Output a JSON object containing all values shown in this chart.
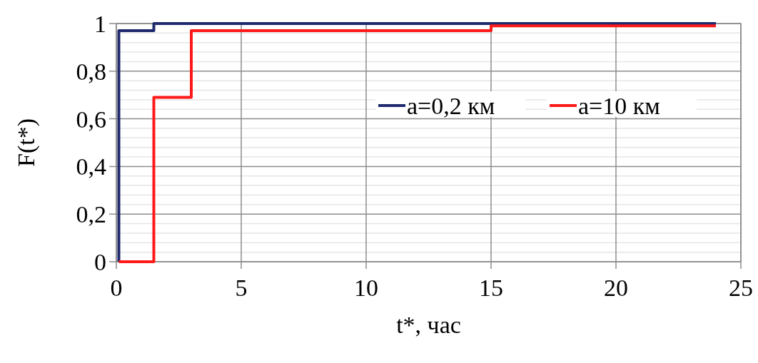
{
  "chart_data": {
    "type": "step",
    "xlabel": "t*, час",
    "ylabel": "F(t*)",
    "xlim": [
      0,
      25
    ],
    "xticks": [
      0,
      5,
      10,
      15,
      20,
      25
    ],
    "ylim": [
      0,
      1
    ],
    "yticks": [
      0,
      {
        "value": 0.2,
        "label": "0,2"
      },
      {
        "value": 0.4,
        "label": "0,4"
      },
      {
        "value": 0.6,
        "label": "0,6"
      },
      {
        "value": 0.8,
        "label": "0,8"
      },
      1
    ],
    "grid": true,
    "legend": "right",
    "line_style": "solid",
    "marker": "none",
    "series": [
      {
        "name": "a=0,2 км",
        "color": "#1f2a6e",
        "x": [
          0.1,
          0.1,
          1.5,
          24
        ],
        "values": [
          0,
          0.97,
          1,
          1
        ]
      },
      {
        "name": "a=10 км",
        "color": "#ff1a1a",
        "x": [
          0.1,
          1.5,
          3,
          15,
          24
        ],
        "values": [
          0,
          0.69,
          0.97,
          0.99,
          0.99
        ]
      }
    ]
  }
}
